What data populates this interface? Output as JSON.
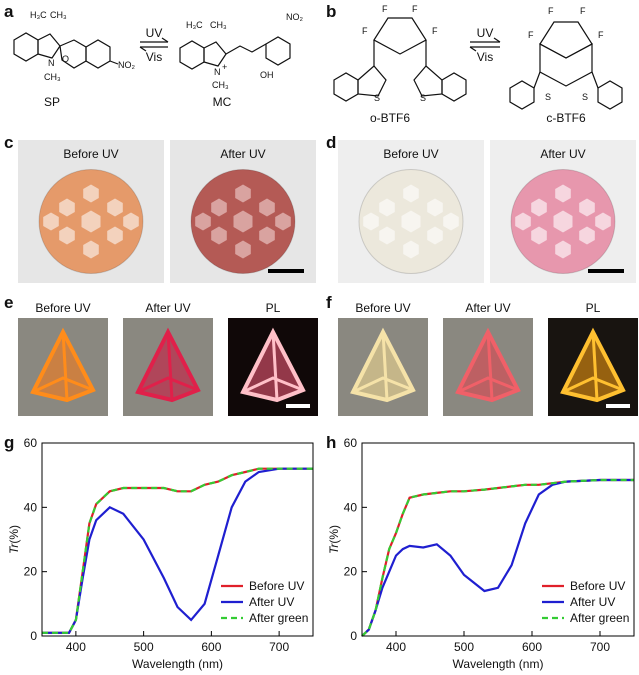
{
  "panels": {
    "a": "a",
    "b": "b",
    "c": "c",
    "d": "d",
    "e": "e",
    "f": "f",
    "g": "g",
    "h": "h"
  },
  "scheme_a": {
    "forward": "UV",
    "backward": "Vis",
    "left_name": "SP",
    "right_name": "MC",
    "left_atoms": [
      "H₃C",
      "CH₃",
      "N",
      "CH₃",
      "O",
      "NO₂"
    ],
    "right_atoms": [
      "H₃C",
      "CH₃",
      "N",
      "+",
      "CH₃",
      "OH",
      "NO₂"
    ]
  },
  "scheme_b": {
    "forward": "UV",
    "backward": "Vis",
    "left_name": "o-BTF6",
    "right_name": "c-BTF6",
    "fluorine": "F",
    "sulfur": "S"
  },
  "photos_c": {
    "labels": [
      "Before UV",
      "After UV"
    ]
  },
  "photos_d": {
    "labels": [
      "Before UV",
      "After UV"
    ]
  },
  "photos_e": {
    "labels": [
      "Before UV",
      "After UV",
      "PL"
    ]
  },
  "photos_f": {
    "labels": [
      "Before UV",
      "After UV",
      "PL"
    ]
  },
  "chart_data": [
    {
      "type": "line",
      "xlabel": "Wavelength (nm)",
      "ylabel": {
        "symbol": "Tr",
        "unit": "(%)"
      },
      "x": [
        350,
        390,
        400,
        410,
        420,
        430,
        450,
        470,
        500,
        530,
        550,
        570,
        590,
        610,
        630,
        650,
        670,
        700,
        750
      ],
      "series": [
        {
          "name": "Before UV",
          "color": "#e0202a",
          "style": "solid",
          "values": [
            1,
            1,
            5,
            20,
            35,
            41,
            45,
            46,
            46,
            46,
            45,
            45,
            47,
            48,
            50,
            51,
            52,
            52,
            52
          ]
        },
        {
          "name": "After UV",
          "color": "#1f1fd0",
          "style": "solid",
          "values": [
            1,
            1,
            5,
            18,
            30,
            36,
            40,
            38,
            30,
            18,
            9,
            5,
            10,
            25,
            40,
            48,
            51,
            52,
            52
          ]
        },
        {
          "name": "After green",
          "color": "#33cc33",
          "style": "dashed",
          "values": [
            1,
            1,
            5,
            20,
            35,
            41,
            45,
            46,
            46,
            46,
            45,
            45,
            47,
            48,
            50,
            51,
            52,
            52,
            52
          ]
        }
      ],
      "xlim": [
        350,
        750
      ],
      "xticks": [
        400,
        500,
        600,
        700
      ],
      "ylim": [
        0,
        60
      ],
      "yticks": [
        0,
        20,
        40,
        60
      ],
      "legend": "lower right"
    },
    {
      "type": "line",
      "xlabel": "Wavelength (nm)",
      "ylabel": {
        "symbol": "Tr",
        "unit": "(%)"
      },
      "x": [
        350,
        360,
        370,
        380,
        390,
        400,
        410,
        420,
        440,
        460,
        480,
        500,
        530,
        550,
        570,
        590,
        610,
        630,
        650,
        700,
        750
      ],
      "series": [
        {
          "name": "Before UV",
          "color": "#e0202a",
          "style": "solid",
          "values": [
            0,
            2,
            8,
            18,
            27,
            32,
            38,
            43,
            44,
            44.5,
            45,
            45,
            45.5,
            46,
            46.5,
            47,
            47,
            47.5,
            48,
            48.5,
            48.5
          ]
        },
        {
          "name": "After UV",
          "color": "#1f1fd0",
          "style": "solid",
          "values": [
            0,
            2,
            8,
            15,
            20,
            25,
            27,
            28,
            27.5,
            28.5,
            25,
            19,
            14,
            15,
            22,
            35,
            44,
            47,
            48,
            48.5,
            48.5
          ]
        },
        {
          "name": "After green",
          "color": "#33cc33",
          "style": "dashed",
          "values": [
            0,
            2,
            8,
            18,
            27,
            32,
            38,
            43,
            44,
            44.5,
            45,
            45,
            45.5,
            46,
            46.5,
            47,
            47,
            47.5,
            48,
            48.5,
            48.5
          ]
        }
      ],
      "xlim": [
        350,
        750
      ],
      "xticks": [
        400,
        500,
        600,
        700
      ],
      "ylim": [
        0,
        60
      ],
      "yticks": [
        0,
        20,
        40,
        60
      ],
      "legend": "lower right"
    }
  ]
}
